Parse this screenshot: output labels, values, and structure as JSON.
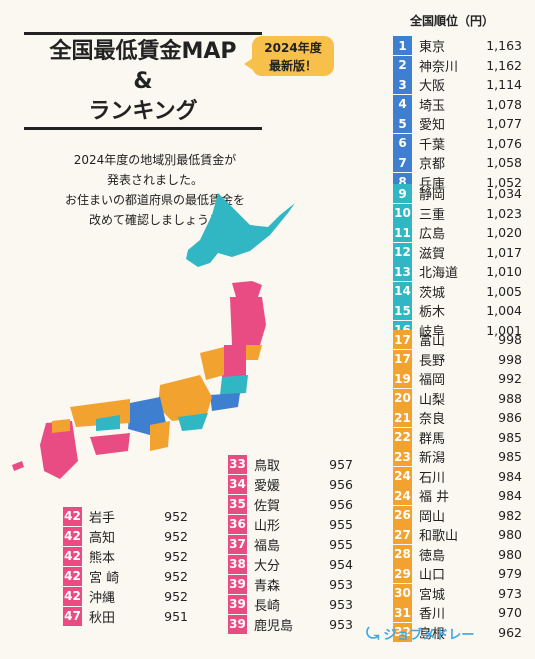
{
  "title": {
    "line1": "全国最低賃金MAP",
    "line2": "&",
    "line3": "ランキング"
  },
  "badge": {
    "line1": "2024年度",
    "line2": "最新版！"
  },
  "intro": {
    "line1": "2024年度の地域別最低賃金が",
    "line2": "発表されました。",
    "line3": "お住まいの都道府県の最低賃金を",
    "line4": "改めて確認しましょう！"
  },
  "ranking_header": "全国順位（円）",
  "colors": {
    "blue": "#3f7fd0",
    "teal": "#31b6c4",
    "orange": "#f2a22e",
    "pink": "#e94c82",
    "map_green": "#3fc09a",
    "map_teal": "#31b6c4"
  },
  "ranking_top": [
    {
      "rank": "1",
      "pref": "東京",
      "wage": "1,163"
    },
    {
      "rank": "2",
      "pref": "神奈川",
      "wage": "1,162"
    },
    {
      "rank": "3",
      "pref": "大阪",
      "wage": "1,114"
    },
    {
      "rank": "4",
      "pref": "埼玉",
      "wage": "1,078"
    },
    {
      "rank": "5",
      "pref": "愛知",
      "wage": "1,077"
    },
    {
      "rank": "6",
      "pref": "千葉",
      "wage": "1,076"
    },
    {
      "rank": "7",
      "pref": "京都",
      "wage": "1,058"
    },
    {
      "rank": "8",
      "pref": "兵庫",
      "wage": "1,052"
    }
  ],
  "ranking_mid": [
    {
      "rank": "9",
      "pref": "静岡",
      "wage": "1,034"
    },
    {
      "rank": "10",
      "pref": "三重",
      "wage": "1,023"
    },
    {
      "rank": "11",
      "pref": "広島",
      "wage": "1,020"
    },
    {
      "rank": "12",
      "pref": "滋賀",
      "wage": "1,017"
    },
    {
      "rank": "13",
      "pref": "北海道",
      "wage": "1,010"
    },
    {
      "rank": "14",
      "pref": "茨城",
      "wage": "1,005"
    },
    {
      "rank": "15",
      "pref": "栃木",
      "wage": "1,004"
    },
    {
      "rank": "16",
      "pref": "岐阜",
      "wage": "1,001"
    }
  ],
  "ranking_low": [
    {
      "rank": "17",
      "pref": "富山",
      "wage": "998"
    },
    {
      "rank": "17",
      "pref": "長野",
      "wage": "998"
    },
    {
      "rank": "19",
      "pref": "福岡",
      "wage": "992"
    },
    {
      "rank": "20",
      "pref": "山梨",
      "wage": "988"
    },
    {
      "rank": "21",
      "pref": "奈良",
      "wage": "986"
    },
    {
      "rank": "22",
      "pref": "群馬",
      "wage": "985"
    },
    {
      "rank": "23",
      "pref": "新潟",
      "wage": "985"
    },
    {
      "rank": "24",
      "pref": "石川",
      "wage": "984"
    },
    {
      "rank": "24",
      "pref": "福 井",
      "wage": "984"
    },
    {
      "rank": "26",
      "pref": "岡山",
      "wage": "982"
    },
    {
      "rank": "27",
      "pref": "和歌山",
      "wage": "980"
    },
    {
      "rank": "28",
      "pref": "徳島",
      "wage": "980"
    },
    {
      "rank": "29",
      "pref": "山口",
      "wage": "979"
    },
    {
      "rank": "30",
      "pref": "宮城",
      "wage": "973"
    },
    {
      "rank": "31",
      "pref": "香川",
      "wage": "970"
    },
    {
      "rank": "32",
      "pref": "島根",
      "wage": "962"
    }
  ],
  "ranking_bottom_mid": [
    {
      "rank": "33",
      "pref": "鳥取",
      "wage": "957"
    },
    {
      "rank": "34",
      "pref": "愛媛",
      "wage": "956"
    },
    {
      "rank": "35",
      "pref": "佐賀",
      "wage": "956"
    },
    {
      "rank": "36",
      "pref": "山形",
      "wage": "955"
    },
    {
      "rank": "37",
      "pref": "福島",
      "wage": "955"
    },
    {
      "rank": "38",
      "pref": "大分",
      "wage": "954"
    },
    {
      "rank": "39",
      "pref": "青森",
      "wage": "953"
    },
    {
      "rank": "39",
      "pref": "長崎",
      "wage": "953"
    },
    {
      "rank": "39",
      "pref": "鹿児島",
      "wage": "953"
    }
  ],
  "ranking_bottom": [
    {
      "rank": "42",
      "pref": "岩手",
      "wage": "952"
    },
    {
      "rank": "42",
      "pref": "高知",
      "wage": "952"
    },
    {
      "rank": "42",
      "pref": "熊本",
      "wage": "952"
    },
    {
      "rank": "42",
      "pref": "宮 崎",
      "wage": "952"
    },
    {
      "rank": "42",
      "pref": "沖縄",
      "wage": "952"
    },
    {
      "rank": "47",
      "pref": "秋田",
      "wage": "951"
    }
  ],
  "logo": {
    "text": "ジョブメドレー"
  }
}
